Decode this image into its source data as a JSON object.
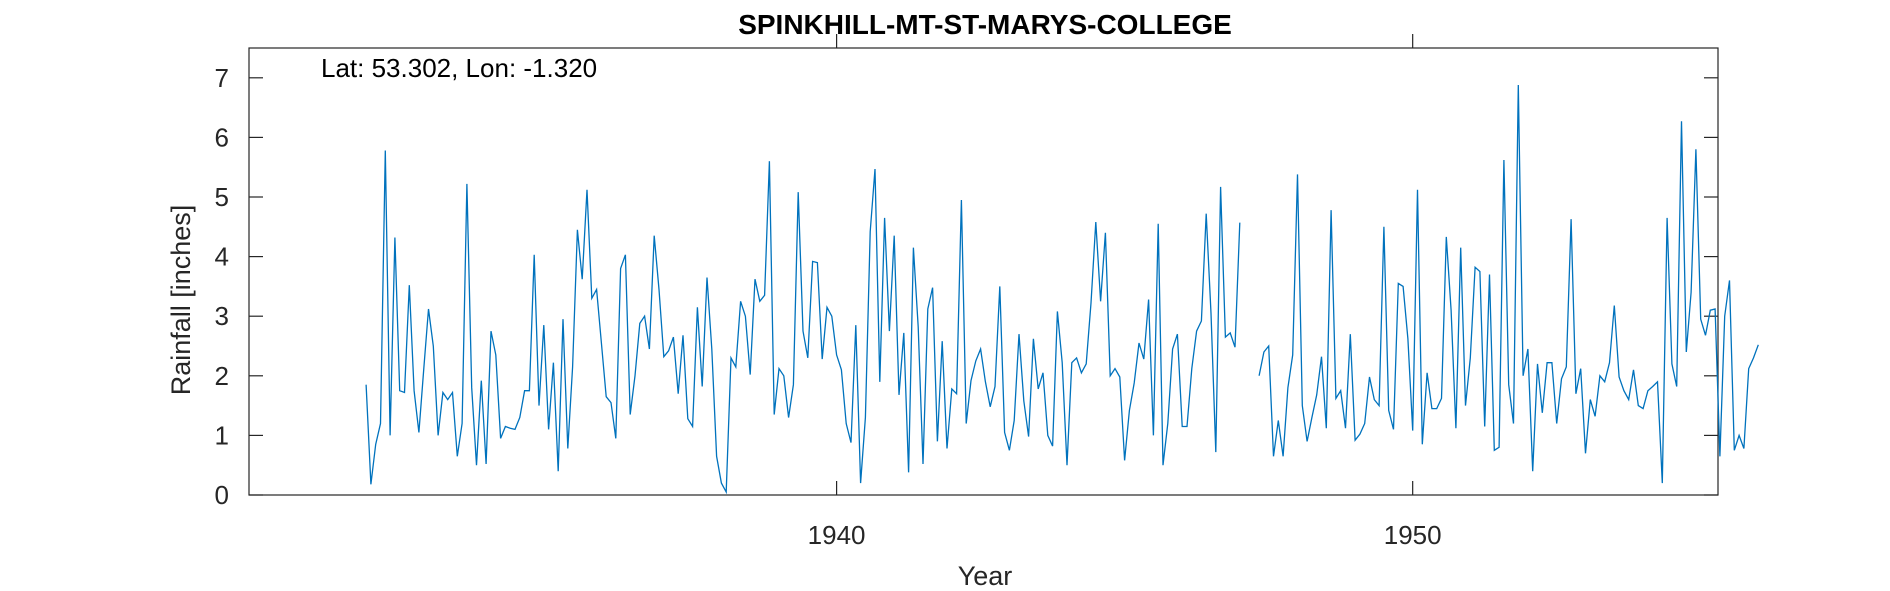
{
  "chart_data": {
    "type": "line",
    "title": "SPINKHILL-MT-ST-MARYS-COLLEGE",
    "annotation": "Lat: 53.302, Lon: -1.320",
    "xlabel": "Year",
    "ylabel": "Rainfall [inches]",
    "xlim": [
      1929.8,
      1955.3
    ],
    "ylim": [
      0,
      7.5
    ],
    "x_ticks": [
      1940,
      1950
    ],
    "y_ticks": [
      0,
      1,
      2,
      3,
      4,
      5,
      6,
      7
    ],
    "grid": false,
    "line_color": "#0072BD",
    "x_start": 1931.8333,
    "x_step": 0.083333,
    "series": [
      {
        "values": [
          1.85,
          0.18,
          0.85,
          1.2,
          5.78,
          1.0,
          4.32,
          1.75,
          1.72,
          3.52,
          1.75,
          1.05,
          2.1,
          3.12,
          2.5,
          1.0,
          1.72,
          1.6,
          1.72,
          0.65,
          1.2,
          5.22,
          1.8,
          0.5,
          1.92,
          0.52,
          2.75,
          2.35,
          0.95,
          1.15,
          1.12,
          1.1,
          1.3,
          1.75,
          1.75,
          4.03,
          1.5,
          2.85,
          1.1,
          2.22,
          0.4,
          2.95,
          0.78,
          2.15,
          4.45,
          3.62,
          5.12,
          3.3,
          3.45,
          2.55,
          1.65,
          1.55,
          0.95,
          3.8,
          4.03,
          1.35,
          2.0,
          2.88,
          3.0,
          2.45,
          4.35,
          3.45,
          2.32,
          2.42,
          2.65,
          1.7,
          2.68,
          1.28,
          1.15,
          3.15,
          1.82,
          3.65,
          2.45,
          0.65,
          0.2,
          0.05,
          2.3,
          2.15,
          3.25,
          3.0,
          2.02,
          3.62,
          3.25,
          3.35,
          5.6,
          1.35,
          2.12,
          2.0,
          1.3,
          1.85,
          5.08,
          2.75,
          2.3,
          3.92,
          3.9,
          2.28,
          3.15,
          3.0,
          2.35,
          2.1,
          1.2,
          0.88,
          2.85,
          0.2,
          1.3,
          4.42,
          5.47,
          1.9,
          4.65,
          2.75,
          4.35,
          1.68,
          2.72,
          0.38,
          4.15,
          2.82,
          0.52,
          3.12,
          3.48,
          0.9,
          2.58,
          0.78,
          1.78,
          1.7,
          4.95,
          1.2,
          1.92,
          2.25,
          2.45,
          1.9,
          1.48,
          1.82,
          3.5,
          1.05,
          0.75,
          1.25,
          2.7,
          1.58,
          0.98,
          2.62,
          1.78,
          2.05,
          1.0,
          0.82,
          3.08,
          2.22,
          0.5,
          2.22,
          2.3,
          2.05,
          2.2,
          3.22,
          4.58,
          3.25,
          4.4,
          2.0,
          2.12,
          1.98,
          0.58,
          1.42,
          1.88,
          2.55,
          2.28,
          3.28,
          1.0,
          4.55,
          0.5,
          1.2,
          2.45,
          2.7,
          1.15,
          1.15,
          2.12,
          2.75,
          2.92,
          4.72,
          3.05,
          0.72,
          5.17,
          2.65,
          2.72,
          2.48,
          4.57,
          null,
          null,
          null,
          2.0,
          2.4,
          2.5,
          0.65,
          1.25,
          0.65,
          1.8,
          2.35,
          5.38,
          1.5,
          0.9,
          1.3,
          1.68,
          2.32,
          1.12,
          4.78,
          1.62,
          1.75,
          1.12,
          2.7,
          0.92,
          1.02,
          1.2,
          1.98,
          1.6,
          1.5,
          4.5,
          1.42,
          1.1,
          3.55,
          3.5,
          2.62,
          1.08,
          5.12,
          0.85,
          2.05,
          1.45,
          1.45,
          1.62,
          4.33,
          3.1,
          1.12,
          4.15,
          1.5,
          2.3,
          3.82,
          3.75,
          1.15,
          3.7,
          0.75,
          0.8,
          5.62,
          1.85,
          1.2,
          6.88,
          2.0,
          2.45,
          0.4,
          2.2,
          1.38,
          2.22,
          2.22,
          1.2,
          1.95,
          2.15,
          4.63,
          1.7,
          2.12,
          0.7,
          1.6,
          1.32,
          2.0,
          1.9,
          2.22,
          3.18,
          1.98,
          1.75,
          1.6,
          2.1,
          1.5,
          1.45,
          1.75,
          1.82,
          1.9,
          0.2,
          4.65,
          2.2,
          1.82,
          6.27,
          2.4,
          3.4,
          5.8,
          2.95,
          2.68,
          3.1,
          3.12,
          0.65,
          3.0,
          3.6,
          0.75,
          1.0,
          0.78,
          2.12,
          2.3,
          2.52
        ]
      }
    ]
  }
}
